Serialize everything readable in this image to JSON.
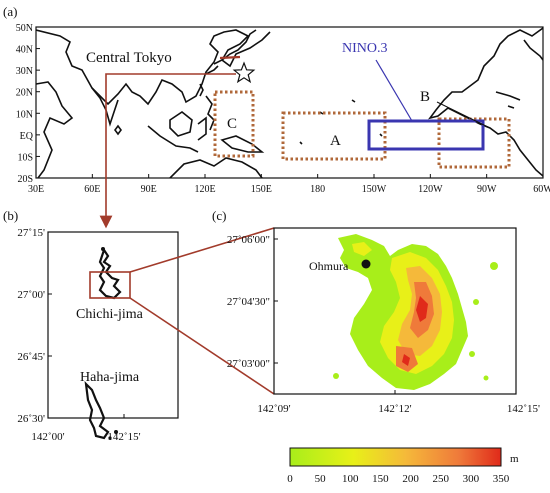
{
  "panel_a": {
    "label": "(a)",
    "lat_ticks": [
      "50N",
      "40N",
      "30N",
      "20N",
      "10N",
      "EQ",
      "10S",
      "20S"
    ],
    "lon_ticks": [
      "30E",
      "60E",
      "90E",
      "120E",
      "150E",
      "180",
      "150W",
      "120W",
      "90W",
      "60W"
    ],
    "labels": {
      "central_tokyo": "Central Tokyo",
      "nino3": "NINO.3",
      "a": "A",
      "b": "B",
      "c": "C"
    },
    "colors": {
      "region_box": "#b0683a",
      "nino_box": "#3a36b0",
      "arrow": "#a23b2b"
    }
  },
  "panel_b": {
    "label": "(b)",
    "lat_ticks": [
      "27˚15'",
      "27˚00'",
      "26˚45'",
      "26˚30'"
    ],
    "lon_ticks": [
      "142˚00'",
      "142˚15'"
    ],
    "labels": {
      "chichi": "Chichi-jima",
      "haha": "Haha-jima"
    }
  },
  "panel_c": {
    "label": "(c)",
    "lat_ticks": [
      "27˚06'00\"",
      "27˚04'30\"",
      "27˚03'00\""
    ],
    "lon_ticks": [
      "142˚09'",
      "142˚12'",
      "142˚15'"
    ],
    "labels": {
      "ohmura": "Ohmura"
    }
  },
  "colorbar": {
    "ticks": [
      "0",
      "50",
      "100",
      "150",
      "200",
      "250",
      "300",
      "350"
    ],
    "unit": "m",
    "colors": [
      "#a8ee1a",
      "#e8f018",
      "#f5b93a",
      "#ef7a3a",
      "#e02a1a"
    ]
  }
}
